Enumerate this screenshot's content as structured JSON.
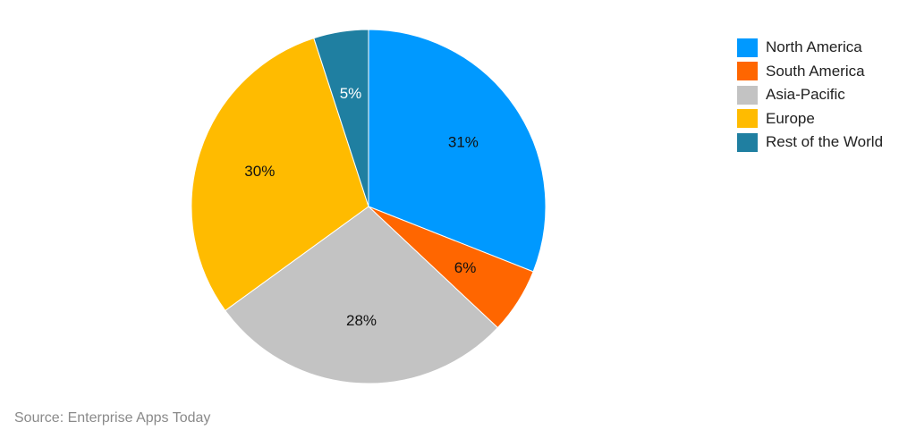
{
  "chart_data": {
    "type": "pie",
    "categories": [
      "North America",
      "South America",
      "Asia-Pacific",
      "Europe",
      "Rest of the World"
    ],
    "values": [
      31,
      6,
      28,
      30,
      5
    ],
    "value_labels": [
      "31%",
      "6%",
      "28%",
      "30%",
      "5%"
    ],
    "colors": [
      "#0099ff",
      "#ff6600",
      "#c3c3c3",
      "#ffbb00",
      "#1f7fa1"
    ],
    "label_colors": [
      "#111111",
      "#111111",
      "#111111",
      "#111111",
      "#ffffff"
    ],
    "start_angle_deg": 0,
    "direction": "clockwise",
    "legend_position": "top-right"
  },
  "source": "Source: Enterprise Apps Today"
}
